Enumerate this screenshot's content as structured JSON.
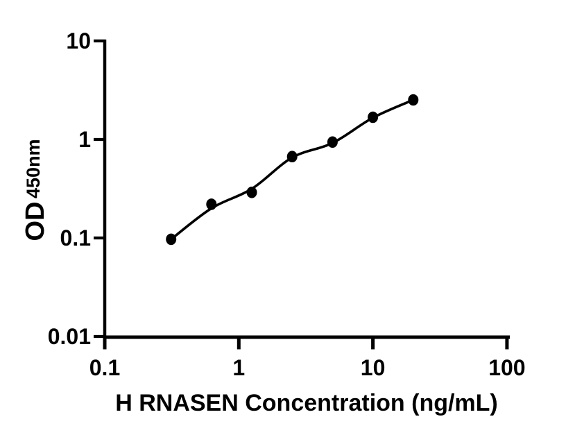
{
  "colors": {
    "background": "#ffffff",
    "ink": "#000000"
  },
  "chart_data": {
    "type": "scatter",
    "title": "",
    "xlabel": "H RNASEN Concentration (ng/mL)",
    "ylabel_main": "OD",
    "ylabel_sub": "450nm",
    "x_scale": "log",
    "y_scale": "log",
    "xlim": [
      0.1,
      100
    ],
    "ylim": [
      0.01,
      10
    ],
    "x_ticks": [
      "0.1",
      "1",
      "10",
      "100"
    ],
    "y_ticks": [
      "0.01",
      "0.1",
      "1",
      "10"
    ],
    "grid": false,
    "legend": null,
    "series": [
      {
        "name": "standard-points",
        "type": "scatter",
        "marker": "filled-circle",
        "color": "#000000",
        "x": [
          0.3125,
          0.625,
          1.25,
          2.5,
          5,
          10,
          20
        ],
        "y": [
          0.097,
          0.22,
          0.29,
          0.67,
          0.94,
          1.68,
          2.52
        ]
      },
      {
        "name": "fit-curve",
        "type": "line",
        "color": "#000000",
        "x": [
          0.3125,
          0.625,
          1.25,
          2.5,
          5,
          10,
          20
        ],
        "y": [
          0.097,
          0.2,
          0.315,
          0.655,
          0.92,
          1.66,
          2.52
        ]
      }
    ]
  }
}
